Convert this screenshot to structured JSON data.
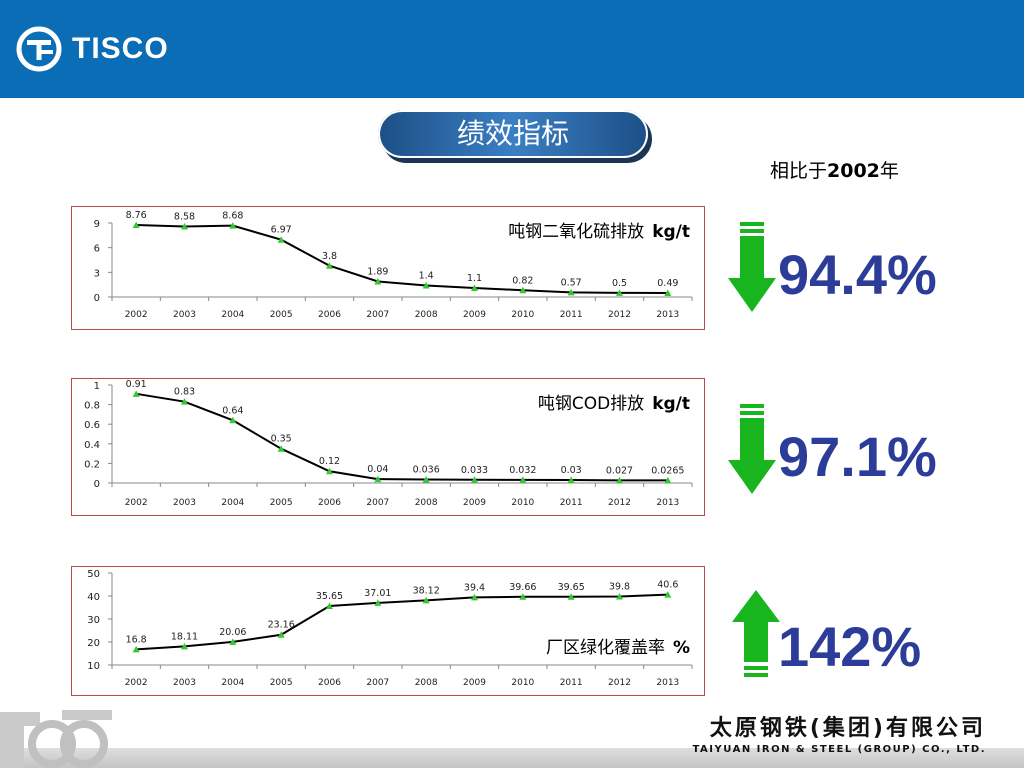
{
  "header": {
    "logo_text": "TISCO"
  },
  "page_title": "绩效指标",
  "comparison": {
    "prefix": "相比于",
    "year": "2002",
    "suffix": "年"
  },
  "indicators": [
    {
      "percent": "94.4%",
      "direction": "down",
      "arrow_color": "#19b51f"
    },
    {
      "percent": "97.1%",
      "direction": "down",
      "arrow_color": "#19b51f"
    },
    {
      "percent": "142%",
      "direction": "up",
      "arrow_color": "#19b51f"
    }
  ],
  "colors": {
    "header_bg": "#0a6db5",
    "percent_text": "#2b3c99",
    "line": "#000000",
    "marker": "#32c832",
    "frame": "#b84a4a"
  },
  "chart_data": [
    {
      "type": "line",
      "title": "吨钢二氧化硫排放",
      "unit": "kg/t",
      "x": [
        "2002",
        "2003",
        "2004",
        "2005",
        "2006",
        "2007",
        "2008",
        "2009",
        "2010",
        "2011",
        "2012",
        "2013"
      ],
      "values": [
        8.76,
        8.58,
        8.68,
        6.97,
        3.8,
        1.89,
        1.4,
        1.1,
        0.82,
        0.57,
        0.5,
        0.49
      ],
      "value_labels": [
        "8.76",
        "8.58",
        "8.68",
        "6.97",
        "3.8",
        "1.89",
        "1.4",
        "1.1",
        "0.82",
        "0.57",
        "0.5",
        "0.49"
      ],
      "yticks": [
        "0",
        "3",
        "6",
        "9"
      ],
      "ylim": [
        0,
        9
      ],
      "grid": false
    },
    {
      "type": "line",
      "title": "吨钢COD排放",
      "unit": "kg/t",
      "x": [
        "2002",
        "2003",
        "2004",
        "2005",
        "2006",
        "2007",
        "2008",
        "2009",
        "2010",
        "2011",
        "2012",
        "2013"
      ],
      "values": [
        0.91,
        0.83,
        0.64,
        0.35,
        0.12,
        0.04,
        0.036,
        0.033,
        0.032,
        0.03,
        0.027,
        0.0265
      ],
      "value_labels": [
        "0.91",
        "0.83",
        "0.64",
        "0.35",
        "0.12",
        "0.04",
        "0.036",
        "0.033",
        "0.032",
        "0.03",
        "0.027",
        "0.0265"
      ],
      "yticks": [
        "0",
        "0.2",
        "0.4",
        "0.6",
        "0.8",
        "1"
      ],
      "ylim": [
        0,
        1
      ],
      "grid": false
    },
    {
      "type": "line",
      "title": "厂区绿化覆盖率",
      "unit": "%",
      "x": [
        "2002",
        "2003",
        "2004",
        "2005",
        "2006",
        "2007",
        "2008",
        "2009",
        "2010",
        "2011",
        "2012",
        "2013"
      ],
      "values": [
        16.8,
        18.11,
        20.06,
        23.16,
        35.65,
        37.01,
        38.12,
        39.4,
        39.66,
        39.65,
        39.8,
        40.6
      ],
      "value_labels": [
        "16.8",
        "18.11",
        "20.06",
        "23.16",
        "35.65",
        "37.01",
        "38.12",
        "39.4",
        "39.66",
        "39.65",
        "39.8",
        "40.6"
      ],
      "yticks": [
        "10",
        "20",
        "30",
        "40",
        "50"
      ],
      "ylim": [
        10,
        50
      ],
      "grid": false
    }
  ],
  "footer": {
    "company_cn": "太原钢铁(集团)有限公司",
    "company_en": "TAIYUAN IRON & STEEL (GROUP) CO., LTD."
  }
}
